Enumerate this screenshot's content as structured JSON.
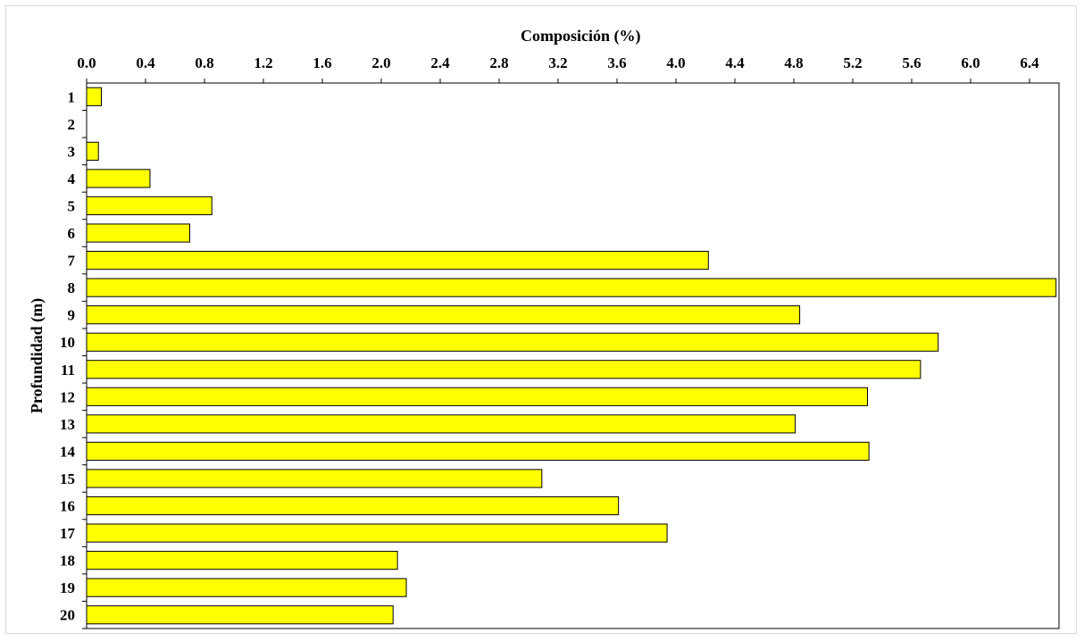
{
  "chart_data": {
    "type": "bar",
    "orientation": "horizontal",
    "xlabel": "Composición (%)",
    "ylabel": "Profundidad (m)",
    "xlim": [
      0,
      6.6
    ],
    "x_ticks": [
      "0.0",
      "0.4",
      "0.8",
      "1.2",
      "1.6",
      "2.0",
      "2.4",
      "2.8",
      "3.2",
      "3.6",
      "4.0",
      "4.4",
      "4.8",
      "5.2",
      "5.6",
      "6.0",
      "6.4"
    ],
    "categories": [
      "1",
      "2",
      "3",
      "4",
      "5",
      "6",
      "7",
      "8",
      "9",
      "10",
      "11",
      "12",
      "13",
      "14",
      "15",
      "16",
      "17",
      "18",
      "19",
      "20"
    ],
    "values": [
      0.1,
      0.0,
      0.08,
      0.43,
      0.85,
      0.7,
      4.22,
      6.58,
      4.84,
      5.78,
      5.66,
      5.3,
      4.81,
      5.31,
      3.09,
      3.61,
      3.94,
      2.11,
      2.17,
      2.08
    ],
    "bar_color": "#FFFF00",
    "grid": false,
    "legend": "none",
    "x_axis_position": "top"
  }
}
